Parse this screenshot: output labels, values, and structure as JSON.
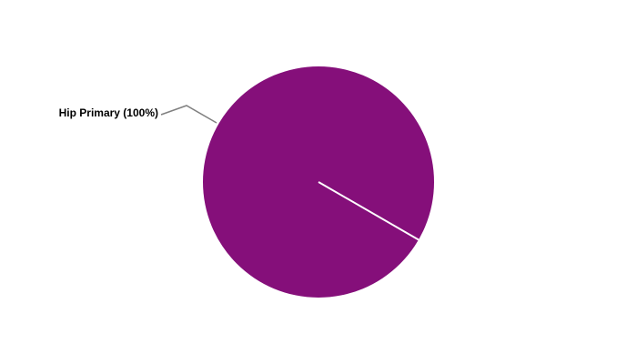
{
  "chart_data": {
    "type": "pie",
    "title": "",
    "slices": [
      {
        "label": "Hip Primary",
        "value": 100,
        "percent_label": "Hip Primary (100%)",
        "color": "#850F7A"
      }
    ],
    "legend": "none",
    "label_style": "outside with leader lines"
  }
}
